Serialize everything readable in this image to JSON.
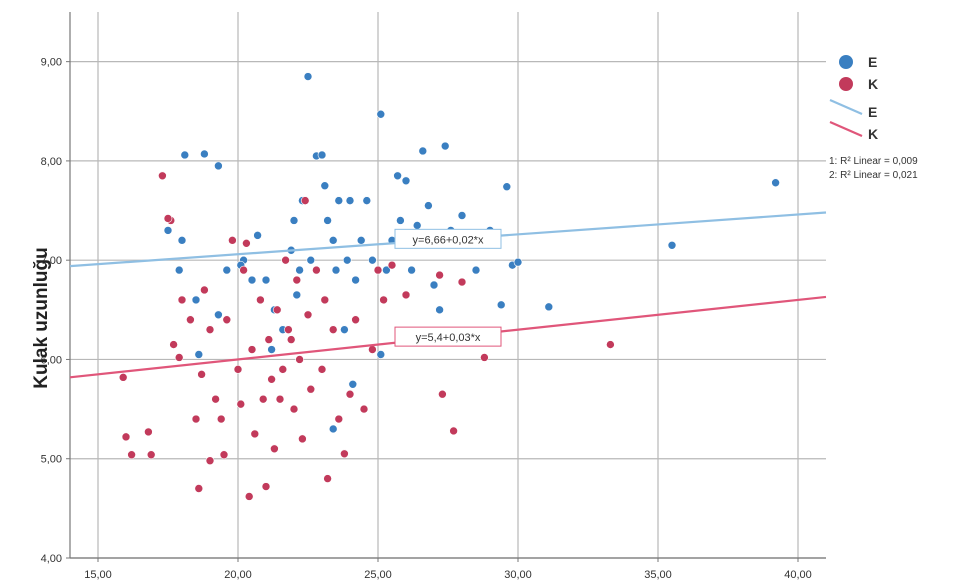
{
  "chart_data": {
    "type": "scatter",
    "title": "",
    "xlabel": "",
    "ylabel": "Kulak uzunluğu",
    "xlim": [
      14,
      41
    ],
    "ylim": [
      4,
      9.5
    ],
    "x_ticks": [
      15,
      20,
      25,
      30,
      35,
      40
    ],
    "x_tick_labels": [
      "15,00",
      "20,00",
      "25,00",
      "30,00",
      "35,00",
      "40,00"
    ],
    "y_ticks": [
      4,
      5,
      6,
      7,
      8,
      9
    ],
    "y_tick_labels": [
      "4,00",
      "5,00",
      "6,00",
      "7,00",
      "8,00",
      "9,00"
    ],
    "grid": true,
    "legend_position": "right",
    "colors": {
      "E": "#3a7fc1",
      "K": "#c23a5b",
      "E_line": "#8fbfe3",
      "K_line": "#e0567a"
    },
    "series": [
      {
        "name": "E",
        "fit_line": {
          "intercept": 6.66,
          "slope": 0.02,
          "equation": "y=6,66+0,02*x"
        },
        "points": [
          [
            17.5,
            7.3
          ],
          [
            17.9,
            6.9
          ],
          [
            18.0,
            7.2
          ],
          [
            18.1,
            8.06
          ],
          [
            18.5,
            6.6
          ],
          [
            18.8,
            8.07
          ],
          [
            19.3,
            7.95
          ],
          [
            19.6,
            6.9
          ],
          [
            19.8,
            7.2
          ],
          [
            20.2,
            7.0
          ],
          [
            20.7,
            7.25
          ],
          [
            21.0,
            6.8
          ],
          [
            21.3,
            6.5
          ],
          [
            21.6,
            6.3
          ],
          [
            21.9,
            7.1
          ],
          [
            22.0,
            7.4
          ],
          [
            22.2,
            6.9
          ],
          [
            22.3,
            7.6
          ],
          [
            22.5,
            8.85
          ],
          [
            22.6,
            7.0
          ],
          [
            22.8,
            8.05
          ],
          [
            23.0,
            8.06
          ],
          [
            23.1,
            7.75
          ],
          [
            23.2,
            7.4
          ],
          [
            23.4,
            7.2
          ],
          [
            23.5,
            6.9
          ],
          [
            23.6,
            7.6
          ],
          [
            23.8,
            6.3
          ],
          [
            23.9,
            7.0
          ],
          [
            24.0,
            7.6
          ],
          [
            24.2,
            6.8
          ],
          [
            24.4,
            7.2
          ],
          [
            24.6,
            7.6
          ],
          [
            24.8,
            7.0
          ],
          [
            25.1,
            8.47
          ],
          [
            25.3,
            6.9
          ],
          [
            25.5,
            7.2
          ],
          [
            25.7,
            7.85
          ],
          [
            25.8,
            7.4
          ],
          [
            26.0,
            7.8
          ],
          [
            26.2,
            6.9
          ],
          [
            26.4,
            7.35
          ],
          [
            26.6,
            8.1
          ],
          [
            26.8,
            7.55
          ],
          [
            27.0,
            6.75
          ],
          [
            27.2,
            6.5
          ],
          [
            27.4,
            8.15
          ],
          [
            27.6,
            7.3
          ],
          [
            28.0,
            7.45
          ],
          [
            28.5,
            6.9
          ],
          [
            29.0,
            7.3
          ],
          [
            29.4,
            6.55
          ],
          [
            29.6,
            7.74
          ],
          [
            29.8,
            6.95
          ],
          [
            30.0,
            6.98
          ],
          [
            31.1,
            6.53
          ],
          [
            35.5,
            7.15
          ],
          [
            39.2,
            7.78
          ],
          [
            18.6,
            6.05
          ],
          [
            19.3,
            6.45
          ],
          [
            20.5,
            6.8
          ],
          [
            21.2,
            6.1
          ],
          [
            23.4,
            5.3
          ],
          [
            24.1,
            5.75
          ],
          [
            25.1,
            6.05
          ],
          [
            22.1,
            6.65
          ],
          [
            20.1,
            6.95
          ]
        ]
      },
      {
        "name": "K",
        "fit_line": {
          "intercept": 5.4,
          "slope": 0.03,
          "equation": "y=5,4+0,03*x"
        },
        "points": [
          [
            15.9,
            5.82
          ],
          [
            16.0,
            5.22
          ],
          [
            16.2,
            5.04
          ],
          [
            16.8,
            5.27
          ],
          [
            16.9,
            5.04
          ],
          [
            17.3,
            7.85
          ],
          [
            17.6,
            7.4
          ],
          [
            17.7,
            6.15
          ],
          [
            17.9,
            6.02
          ],
          [
            18.0,
            6.6
          ],
          [
            18.3,
            6.4
          ],
          [
            18.5,
            5.4
          ],
          [
            18.6,
            4.7
          ],
          [
            18.7,
            5.85
          ],
          [
            18.8,
            6.7
          ],
          [
            19.0,
            4.98
          ],
          [
            19.2,
            5.6
          ],
          [
            19.4,
            5.4
          ],
          [
            19.5,
            5.04
          ],
          [
            19.6,
            6.4
          ],
          [
            19.8,
            7.2
          ],
          [
            20.0,
            5.9
          ],
          [
            20.1,
            5.55
          ],
          [
            20.2,
            6.9
          ],
          [
            20.3,
            7.17
          ],
          [
            20.4,
            4.62
          ],
          [
            20.5,
            6.1
          ],
          [
            20.6,
            5.25
          ],
          [
            20.8,
            6.6
          ],
          [
            20.9,
            5.6
          ],
          [
            21.0,
            4.72
          ],
          [
            21.1,
            6.2
          ],
          [
            21.2,
            5.8
          ],
          [
            21.3,
            5.1
          ],
          [
            21.4,
            6.5
          ],
          [
            21.5,
            5.6
          ],
          [
            21.6,
            5.9
          ],
          [
            21.7,
            7.0
          ],
          [
            21.8,
            6.3
          ],
          [
            22.0,
            5.5
          ],
          [
            22.1,
            6.8
          ],
          [
            22.2,
            6.0
          ],
          [
            22.3,
            5.2
          ],
          [
            22.4,
            7.6
          ],
          [
            22.5,
            6.45
          ],
          [
            22.6,
            5.7
          ],
          [
            22.8,
            6.9
          ],
          [
            23.0,
            5.9
          ],
          [
            23.2,
            4.8
          ],
          [
            23.4,
            6.3
          ],
          [
            23.6,
            5.4
          ],
          [
            23.8,
            5.05
          ],
          [
            24.0,
            5.65
          ],
          [
            24.2,
            6.4
          ],
          [
            24.5,
            5.5
          ],
          [
            24.8,
            6.1
          ],
          [
            25.0,
            6.9
          ],
          [
            25.2,
            6.6
          ],
          [
            25.5,
            6.95
          ],
          [
            26.0,
            6.65
          ],
          [
            27.2,
            6.85
          ],
          [
            27.3,
            5.65
          ],
          [
            27.7,
            5.28
          ],
          [
            28.0,
            6.78
          ],
          [
            28.8,
            6.02
          ],
          [
            33.3,
            6.15
          ],
          [
            17.5,
            7.42
          ],
          [
            19.0,
            6.3
          ],
          [
            21.9,
            6.2
          ],
          [
            23.1,
            6.6
          ]
        ]
      }
    ],
    "legend": {
      "marker_labels": [
        "E",
        "K"
      ],
      "line_labels": [
        "E",
        "K"
      ],
      "r2_lines": [
        "1: R² Linear = 0,009",
        "2: R² Linear = 0,021"
      ]
    }
  }
}
